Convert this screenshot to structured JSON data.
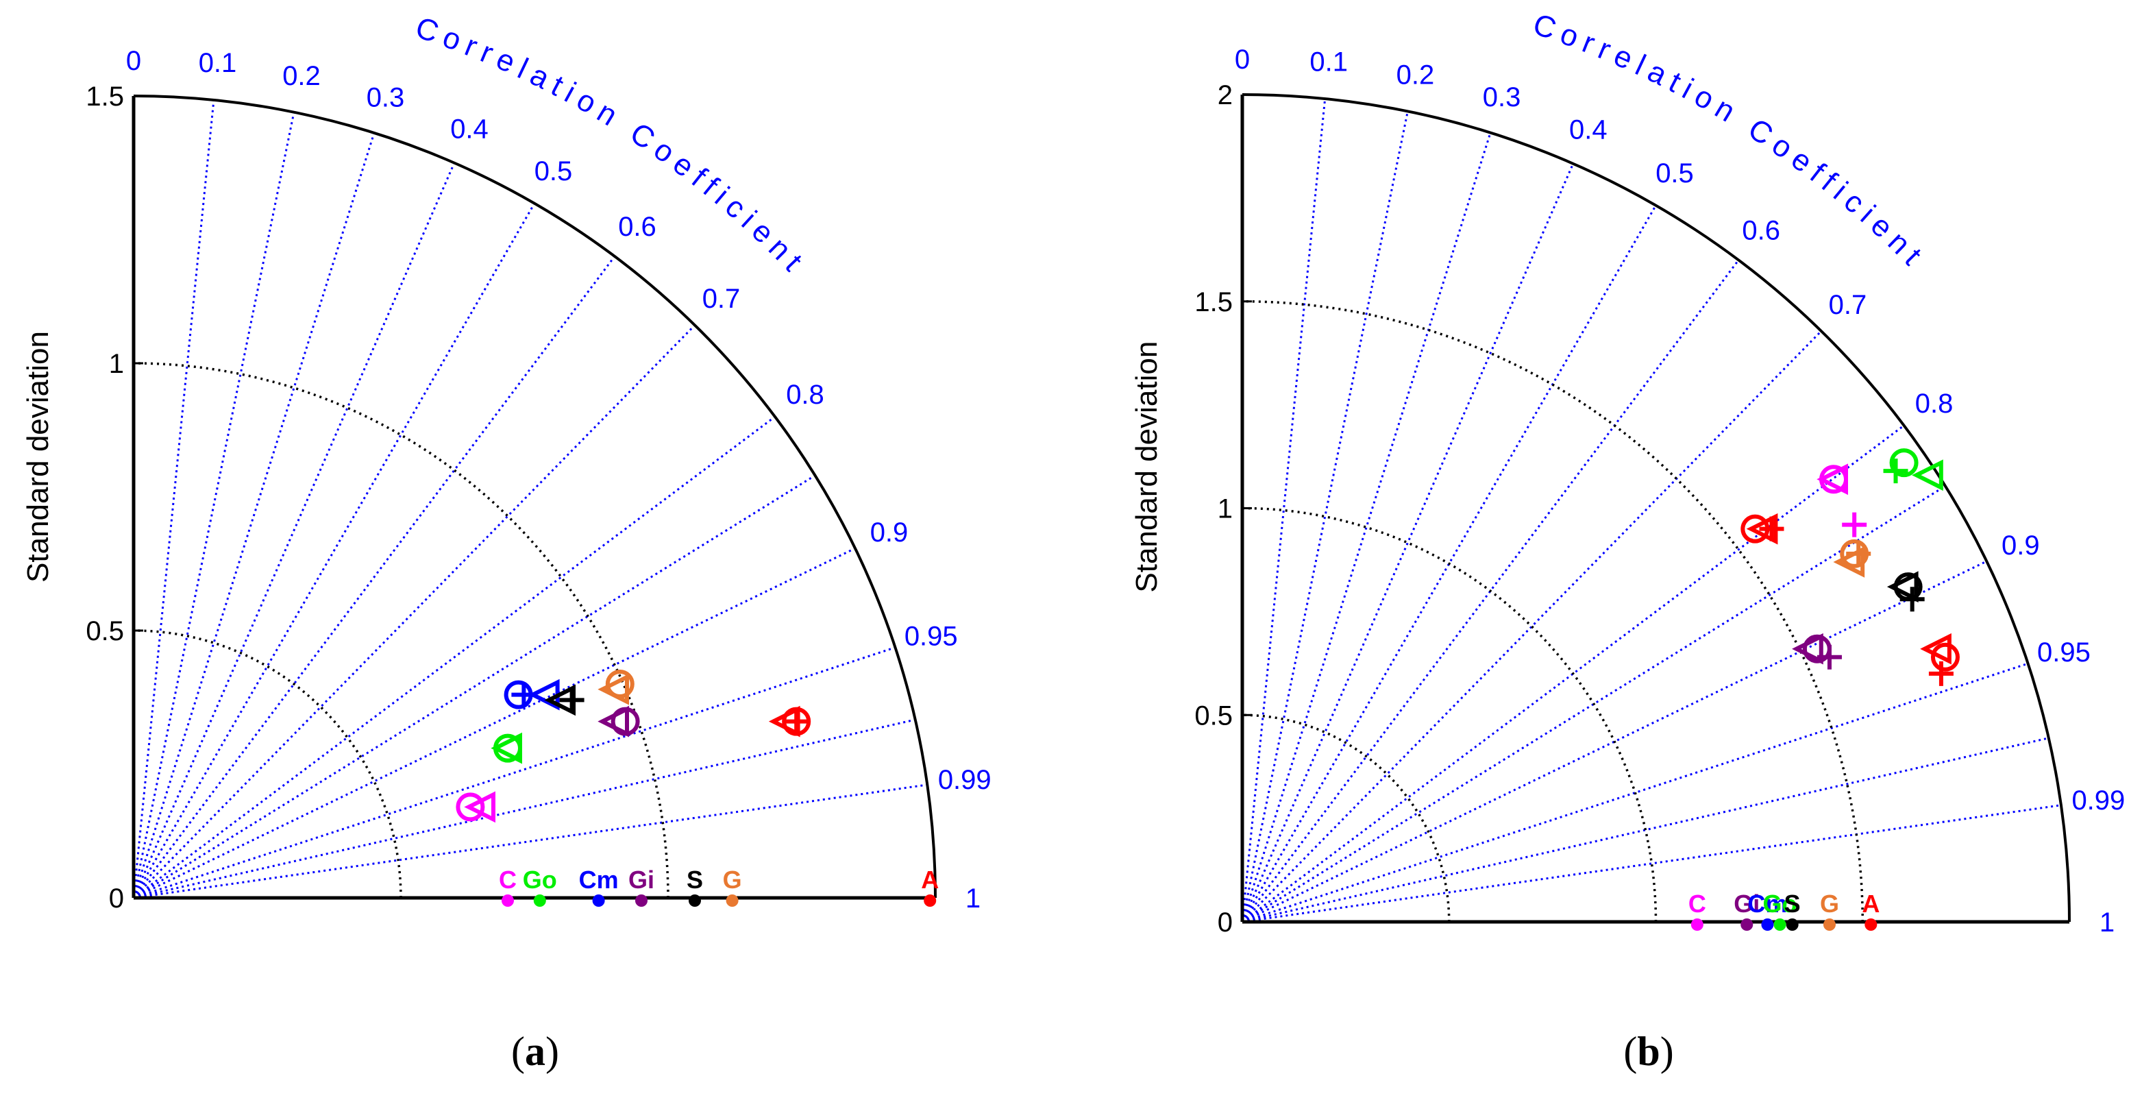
{
  "chart_data": [
    {
      "type": "taylor",
      "panel_label": "a",
      "ylabel": "Standard deviation",
      "corr_axis_label": "Correlation Coefficient",
      "std_max": 1.5,
      "std_ticks": [
        0,
        0.5,
        1,
        1.5
      ],
      "std_tick_labels": [
        "0",
        "0.5",
        "1",
        "1.5"
      ],
      "rms_arcs": [
        0.5,
        1.0
      ],
      "corr_ticks": [
        0,
        0.1,
        0.2,
        0.3,
        0.4,
        0.5,
        0.6,
        0.7,
        0.8,
        0.9,
        0.95,
        0.99,
        1
      ],
      "corr_tick_labels": [
        "0",
        "0.1",
        "0.2",
        "0.3",
        "0.4",
        "0.5",
        "0.6",
        "0.7",
        "0.8",
        "0.9",
        "0.95",
        "0.99",
        "1"
      ],
      "references": [
        {
          "label": "C",
          "std": 0.7,
          "color": "#ff00ff"
        },
        {
          "label": "Go",
          "std": 0.76,
          "color": "#00ee00"
        },
        {
          "label": "Cm",
          "std": 0.87,
          "color": "#0000ff"
        },
        {
          "label": "Gi",
          "std": 0.95,
          "color": "#800080"
        },
        {
          "label": "S",
          "std": 1.05,
          "color": "#000000"
        },
        {
          "label": "G",
          "std": 1.12,
          "color": "#e87830"
        },
        {
          "label": "A",
          "std": 1.49,
          "color": "#ff0000"
        }
      ],
      "points": [
        {
          "symbol": "circle",
          "x": 0.63,
          "y": 0.17,
          "color": "#ff00ff"
        },
        {
          "symbol": "triangle",
          "x": 0.65,
          "y": 0.17,
          "color": "#ff00ff"
        },
        {
          "symbol": "circle",
          "x": 0.7,
          "y": 0.28,
          "color": "#00ee00"
        },
        {
          "symbol": "triangle",
          "x": 0.7,
          "y": 0.28,
          "color": "#00ee00"
        },
        {
          "symbol": "circle",
          "x": 0.72,
          "y": 0.38,
          "color": "#0000ff"
        },
        {
          "symbol": "plus",
          "x": 0.73,
          "y": 0.38,
          "color": "#0000ff"
        },
        {
          "symbol": "triangle",
          "x": 0.77,
          "y": 0.38,
          "color": "#0000ff"
        },
        {
          "symbol": "triangle",
          "x": 0.8,
          "y": 0.37,
          "color": "#000000"
        },
        {
          "symbol": "plus",
          "x": 0.82,
          "y": 0.37,
          "color": "#000000"
        },
        {
          "symbol": "circle",
          "x": 0.91,
          "y": 0.4,
          "color": "#e87830"
        },
        {
          "symbol": "triangle",
          "x": 0.9,
          "y": 0.39,
          "color": "#e87830"
        },
        {
          "symbol": "circle",
          "x": 0.92,
          "y": 0.33,
          "color": "#800080"
        },
        {
          "symbol": "triangle",
          "x": 0.9,
          "y": 0.33,
          "color": "#800080"
        },
        {
          "symbol": "circle",
          "x": 1.24,
          "y": 0.33,
          "color": "#ff0000"
        },
        {
          "symbol": "triangle",
          "x": 1.22,
          "y": 0.33,
          "color": "#ff0000"
        },
        {
          "symbol": "plus",
          "x": 1.24,
          "y": 0.33,
          "color": "#ff0000"
        }
      ]
    },
    {
      "type": "taylor",
      "panel_label": "b",
      "ylabel": "Standard deviation",
      "corr_axis_label": "Correlation Coefficient",
      "std_max": 2.0,
      "std_ticks": [
        0,
        0.5,
        1,
        1.5,
        2
      ],
      "std_tick_labels": [
        "0",
        "0.5",
        "1",
        "1.5",
        "2"
      ],
      "rms_arcs": [
        0.5,
        1.0,
        1.5
      ],
      "corr_ticks": [
        0,
        0.1,
        0.2,
        0.3,
        0.4,
        0.5,
        0.6,
        0.7,
        0.8,
        0.9,
        0.95,
        0.99,
        1
      ],
      "corr_tick_labels": [
        "0",
        "0.1",
        "0.2",
        "0.3",
        "0.4",
        "0.5",
        "0.6",
        "0.7",
        "0.8",
        "0.9",
        "0.95",
        "0.99",
        "1"
      ],
      "references": [
        {
          "label": "C",
          "std": 1.1,
          "color": "#ff00ff"
        },
        {
          "label": "Gi",
          "std": 1.22,
          "color": "#800080"
        },
        {
          "label": "Cm",
          "std": 1.27,
          "color": "#0000ff"
        },
        {
          "label": "Go",
          "std": 1.3,
          "color": "#00ee00"
        },
        {
          "label": "S",
          "std": 1.33,
          "color": "#000000"
        },
        {
          "label": "G",
          "std": 1.42,
          "color": "#e87830"
        },
        {
          "label": "A",
          "std": 1.52,
          "color": "#ff0000"
        }
      ],
      "points": [
        {
          "symbol": "circle",
          "x": 1.6,
          "y": 1.11,
          "color": "#00ee00"
        },
        {
          "symbol": "triangle",
          "x": 1.66,
          "y": 1.08,
          "color": "#00ee00"
        },
        {
          "symbol": "plus",
          "x": 1.58,
          "y": 1.09,
          "color": "#00ee00"
        },
        {
          "symbol": "circle",
          "x": 1.43,
          "y": 1.07,
          "color": "#ff00ff"
        },
        {
          "symbol": "triangle",
          "x": 1.43,
          "y": 1.07,
          "color": "#ff00ff"
        },
        {
          "symbol": "plus",
          "x": 1.48,
          "y": 0.96,
          "color": "#ff00ff"
        },
        {
          "symbol": "circle",
          "x": 1.24,
          "y": 0.95,
          "color": "#ff0000"
        },
        {
          "symbol": "triangle",
          "x": 1.26,
          "y": 0.95,
          "color": "#ff0000"
        },
        {
          "symbol": "plus",
          "x": 1.28,
          "y": 0.95,
          "color": "#ff0000"
        },
        {
          "symbol": "circle",
          "x": 1.48,
          "y": 0.89,
          "color": "#e87830"
        },
        {
          "symbol": "triangle",
          "x": 1.47,
          "y": 0.87,
          "color": "#e87830"
        },
        {
          "symbol": "plus",
          "x": 1.49,
          "y": 0.89,
          "color": "#e87830"
        },
        {
          "symbol": "circle",
          "x": 1.61,
          "y": 0.81,
          "color": "#000000"
        },
        {
          "symbol": "triangle",
          "x": 1.6,
          "y": 0.81,
          "color": "#000000"
        },
        {
          "symbol": "plus",
          "x": 1.62,
          "y": 0.78,
          "color": "#000000"
        },
        {
          "symbol": "circle",
          "x": 1.39,
          "y": 0.66,
          "color": "#800080"
        },
        {
          "symbol": "triangle",
          "x": 1.37,
          "y": 0.66,
          "color": "#800080"
        },
        {
          "symbol": "plus",
          "x": 1.42,
          "y": 0.64,
          "color": "#800080"
        },
        {
          "symbol": "circle",
          "x": 1.7,
          "y": 0.64,
          "color": "#ff0000"
        },
        {
          "symbol": "triangle",
          "x": 1.68,
          "y": 0.66,
          "color": "#ff0000"
        },
        {
          "symbol": "plus",
          "x": 1.69,
          "y": 0.6,
          "color": "#ff0000"
        }
      ]
    }
  ],
  "captions": {
    "a": {
      "open": "(",
      "letter": "a",
      "close": ")"
    },
    "b": {
      "open": "(",
      "letter": "b",
      "close": ")"
    }
  }
}
